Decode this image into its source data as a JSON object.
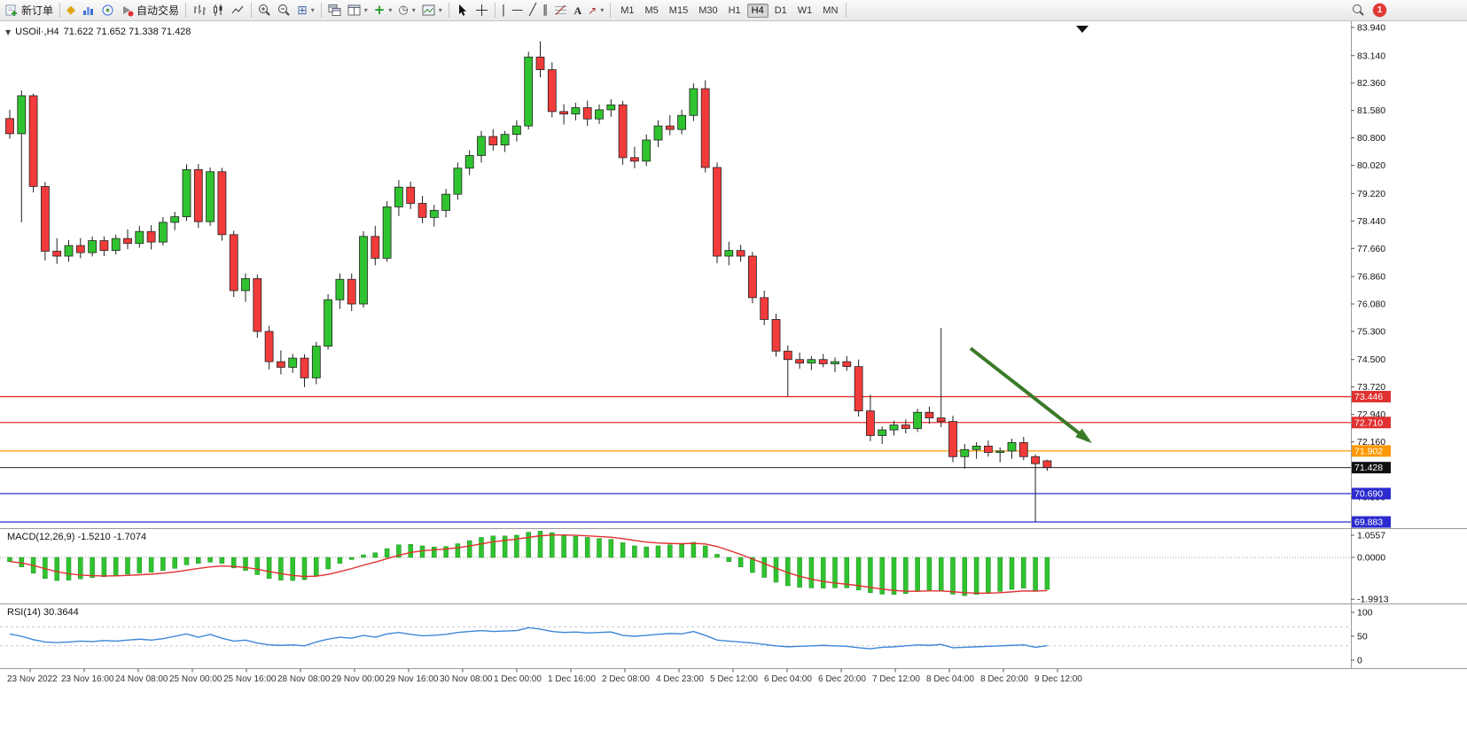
{
  "toolbar": {
    "new_order_label": "新订单",
    "auto_trading_label": "自动交易",
    "text_tool_label": "A",
    "timeframes": [
      "M1",
      "M5",
      "M15",
      "M30",
      "H1",
      "H4",
      "D1",
      "W1",
      "MN"
    ],
    "active_timeframe": "H4",
    "notification_badge": "1",
    "icons": {
      "metaquotes": "◆",
      "tile_windows": "⊞",
      "clock": "◷",
      "dropdown": "▾",
      "new_chart_plus": "+",
      "crosshair": "+",
      "vertical_line": "|",
      "horizontal_line": "—",
      "trendline": "╱",
      "channel": "∥",
      "arrows_tool": "↗"
    }
  },
  "chart": {
    "collapse_icon": "▼",
    "symbol_title": "USOil·,H4",
    "ohlc": "71.622 71.652 71.338 71.428"
  },
  "chart_data": {
    "type": "candlestick",
    "symbol": "USOil",
    "timeframe": "H4",
    "colors": {
      "up": "#2fc42f",
      "down": "#f23b3b",
      "wick": "#222222",
      "rsi_line": "#3d87d8",
      "macd_histogram": "#2fc42f",
      "macd_signal": "#e03131"
    },
    "price_axis_ticks": [
      "83.940",
      "83.140",
      "82.360",
      "81.580",
      "80.800",
      "80.020",
      "79.220",
      "78.440",
      "77.660",
      "76.860",
      "76.080",
      "75.300",
      "74.500",
      "73.720",
      "72.940",
      "72.160",
      "70.590"
    ],
    "hlines": [
      {
        "price": 73.446,
        "label": "73.446",
        "color": "#e03131"
      },
      {
        "price": 72.71,
        "label": "72.710",
        "color": "#e03131"
      },
      {
        "price": 71.902,
        "label": "71.902",
        "color": "#ff9800"
      },
      {
        "price": 70.69,
        "label": "70.690",
        "color": "#2a2ad0"
      },
      {
        "price": 69.883,
        "label": "69.883",
        "color": "#2a2ad0"
      }
    ],
    "current_price": {
      "value": 71.428,
      "label": "71.428",
      "color": "#222222",
      "label_bg": "#111111"
    },
    "candles": [
      [
        81.35,
        81.6,
        80.78,
        80.92
      ],
      [
        80.92,
        82.15,
        78.4,
        82.0
      ],
      [
        82.0,
        82.06,
        79.25,
        79.42
      ],
      [
        79.42,
        79.55,
        77.32,
        77.58
      ],
      [
        77.58,
        77.95,
        77.22,
        77.44
      ],
      [
        77.44,
        77.9,
        77.28,
        77.74
      ],
      [
        77.74,
        77.95,
        77.38,
        77.54
      ],
      [
        77.54,
        78.0,
        77.43,
        77.88
      ],
      [
        77.88,
        78.0,
        77.44,
        77.6
      ],
      [
        77.6,
        78.05,
        77.49,
        77.94
      ],
      [
        77.94,
        78.2,
        77.64,
        77.8
      ],
      [
        77.8,
        78.3,
        77.68,
        78.14
      ],
      [
        78.14,
        78.32,
        77.63,
        77.84
      ],
      [
        77.84,
        78.55,
        77.74,
        78.4
      ],
      [
        78.4,
        78.7,
        78.18,
        78.56
      ],
      [
        78.56,
        80.05,
        78.44,
        79.9
      ],
      [
        79.9,
        80.06,
        78.24,
        78.42
      ],
      [
        78.42,
        79.96,
        78.3,
        79.84
      ],
      [
        79.84,
        79.95,
        77.88,
        78.05
      ],
      [
        78.05,
        78.16,
        76.28,
        76.46
      ],
      [
        76.46,
        76.95,
        76.14,
        76.8
      ],
      [
        76.8,
        76.92,
        75.12,
        75.3
      ],
      [
        75.3,
        75.46,
        74.22,
        74.44
      ],
      [
        74.44,
        74.76,
        74.08,
        74.28
      ],
      [
        74.28,
        74.66,
        74.12,
        74.54
      ],
      [
        74.54,
        74.65,
        73.72,
        73.98
      ],
      [
        73.98,
        75.0,
        73.8,
        74.88
      ],
      [
        74.88,
        76.36,
        74.78,
        76.2
      ],
      [
        76.2,
        76.95,
        75.94,
        76.78
      ],
      [
        76.78,
        76.95,
        75.88,
        76.08
      ],
      [
        76.08,
        78.15,
        75.98,
        78.0
      ],
      [
        78.0,
        78.3,
        77.18,
        77.38
      ],
      [
        77.38,
        79.0,
        77.28,
        78.84
      ],
      [
        78.84,
        79.6,
        78.58,
        79.4
      ],
      [
        79.4,
        79.56,
        78.78,
        78.94
      ],
      [
        78.94,
        79.15,
        78.38,
        78.54
      ],
      [
        78.54,
        78.9,
        78.28,
        78.74
      ],
      [
        78.74,
        79.35,
        78.54,
        79.2
      ],
      [
        79.2,
        80.1,
        79.04,
        79.94
      ],
      [
        79.94,
        80.45,
        79.74,
        80.3
      ],
      [
        80.3,
        81.0,
        80.1,
        80.84
      ],
      [
        80.84,
        81.05,
        80.44,
        80.6
      ],
      [
        80.6,
        81.0,
        80.4,
        80.9
      ],
      [
        80.9,
        81.3,
        80.7,
        81.14
      ],
      [
        81.14,
        83.25,
        81.04,
        83.1
      ],
      [
        83.1,
        83.55,
        82.52,
        82.74
      ],
      [
        82.74,
        82.95,
        81.38,
        81.55
      ],
      [
        81.55,
        81.76,
        81.18,
        81.48
      ],
      [
        81.48,
        81.8,
        81.3,
        81.66
      ],
      [
        81.66,
        81.86,
        81.14,
        81.34
      ],
      [
        81.34,
        81.75,
        81.2,
        81.6
      ],
      [
        81.6,
        81.9,
        81.4,
        81.74
      ],
      [
        81.74,
        81.85,
        80.04,
        80.24
      ],
      [
        80.24,
        80.55,
        79.94,
        80.14
      ],
      [
        80.14,
        80.9,
        80.0,
        80.74
      ],
      [
        80.74,
        81.3,
        80.54,
        81.14
      ],
      [
        81.14,
        81.45,
        80.88,
        81.04
      ],
      [
        81.04,
        81.6,
        80.9,
        81.44
      ],
      [
        81.44,
        82.35,
        81.28,
        82.2
      ],
      [
        82.2,
        82.44,
        79.82,
        79.96
      ],
      [
        79.96,
        80.1,
        77.24,
        77.44
      ],
      [
        77.44,
        77.85,
        77.18,
        77.6
      ],
      [
        77.6,
        77.76,
        77.28,
        77.44
      ],
      [
        77.44,
        77.56,
        76.1,
        76.26
      ],
      [
        76.26,
        76.46,
        75.48,
        75.64
      ],
      [
        75.64,
        75.8,
        74.58,
        74.74
      ],
      [
        74.74,
        74.9,
        73.45,
        74.5
      ],
      [
        74.5,
        74.7,
        74.24,
        74.4
      ],
      [
        74.4,
        74.6,
        74.2,
        74.5
      ],
      [
        74.5,
        74.66,
        74.28,
        74.38
      ],
      [
        74.38,
        74.56,
        74.14,
        74.44
      ],
      [
        74.44,
        74.6,
        74.18,
        74.3
      ],
      [
        74.3,
        74.5,
        72.88,
        73.04
      ],
      [
        73.04,
        73.5,
        72.18,
        72.34
      ],
      [
        72.34,
        72.6,
        72.1,
        72.5
      ],
      [
        72.5,
        72.76,
        72.34,
        72.64
      ],
      [
        72.64,
        72.8,
        72.4,
        72.54
      ],
      [
        72.54,
        73.1,
        72.44,
        73.0
      ],
      [
        73.0,
        73.16,
        72.68,
        72.84
      ],
      [
        72.84,
        75.4,
        72.58,
        72.74
      ],
      [
        72.74,
        72.9,
        71.58,
        71.74
      ],
      [
        71.74,
        72.1,
        71.4,
        71.94
      ],
      [
        71.94,
        72.15,
        71.68,
        72.04
      ],
      [
        72.04,
        72.2,
        71.74,
        71.86
      ],
      [
        71.86,
        72.0,
        71.58,
        71.9
      ],
      [
        71.9,
        72.25,
        71.68,
        72.14
      ],
      [
        72.14,
        72.3,
        71.64,
        71.74
      ],
      [
        71.74,
        71.8,
        69.88,
        71.54
      ],
      [
        71.622,
        71.652,
        71.338,
        71.428
      ]
    ],
    "time_labels": [
      "23 Nov 2022",
      "23 Nov 16:00",
      "24 Nov 08:00",
      "25 Nov 00:00",
      "25 Nov 16:00",
      "28 Nov 08:00",
      "29 Nov 00:00",
      "29 Nov 16:00",
      "30 Nov 08:00",
      "1 Dec 00:00",
      "1 Dec 16:00",
      "2 Dec 08:00",
      "4 Dec 23:00",
      "5 Dec 12:00",
      "6 Dec 04:00",
      "6 Dec 20:00",
      "7 Dec 12:00",
      "8 Dec 04:00",
      "8 Dec 20:00",
      "9 Dec 12:00"
    ],
    "macd": {
      "label": "MACD(12,26,9) -1.5210 -1.7074",
      "axis_ticks": [
        "1.0557",
        "0.0000",
        "-1.9913"
      ],
      "values": [
        -0.2,
        -0.45,
        -0.75,
        -1.0,
        -1.1,
        -1.08,
        -1.02,
        -0.96,
        -0.92,
        -0.86,
        -0.8,
        -0.74,
        -0.7,
        -0.62,
        -0.52,
        -0.35,
        -0.28,
        -0.22,
        -0.28,
        -0.5,
        -0.62,
        -0.82,
        -1.0,
        -1.08,
        -1.1,
        -1.06,
        -0.86,
        -0.55,
        -0.28,
        -0.1,
        0.12,
        0.22,
        0.42,
        0.6,
        0.62,
        0.55,
        0.5,
        0.52,
        0.65,
        0.8,
        0.95,
        1.02,
        1.02,
        1.06,
        1.2,
        1.25,
        1.18,
        1.08,
        1.0,
        0.95,
        0.9,
        0.86,
        0.7,
        0.55,
        0.5,
        0.55,
        0.6,
        0.62,
        0.72,
        0.55,
        0.15,
        -0.2,
        -0.45,
        -0.72,
        -0.95,
        -1.18,
        -1.35,
        -1.42,
        -1.45,
        -1.46,
        -1.45,
        -1.45,
        -1.55,
        -1.68,
        -1.75,
        -1.76,
        -1.72,
        -1.62,
        -1.55,
        -1.6,
        -1.75,
        -1.82,
        -1.76,
        -1.7,
        -1.62,
        -1.52,
        -1.46,
        -1.62,
        -1.521
      ]
    },
    "rsi": {
      "label": "RSI(14) 30.3644",
      "axis_ticks": [
        "100",
        "50",
        "0"
      ],
      "levels": [
        70,
        30
      ],
      "values": [
        55,
        50,
        43,
        38,
        37,
        38,
        40,
        39,
        41,
        40,
        42,
        44,
        42,
        45,
        50,
        55,
        48,
        54,
        46,
        40,
        42,
        36,
        32,
        31,
        32,
        30,
        38,
        44,
        48,
        46,
        52,
        48,
        55,
        58,
        54,
        51,
        52,
        54,
        58,
        60,
        62,
        60,
        61,
        62,
        68,
        65,
        60,
        58,
        59,
        57,
        58,
        59,
        52,
        50,
        52,
        54,
        56,
        55,
        60,
        52,
        42,
        40,
        38,
        36,
        33,
        30,
        28,
        29,
        30,
        31,
        30,
        29,
        26,
        24,
        27,
        28,
        30,
        32,
        31,
        33,
        26,
        27,
        28,
        29,
        30,
        31,
        32,
        27,
        30.36
      ]
    },
    "arrow": {
      "from_index": 81.5,
      "from_price": 74.82,
      "to_index": 91.5,
      "to_price": 72.2,
      "color": "#3a7a28"
    }
  }
}
